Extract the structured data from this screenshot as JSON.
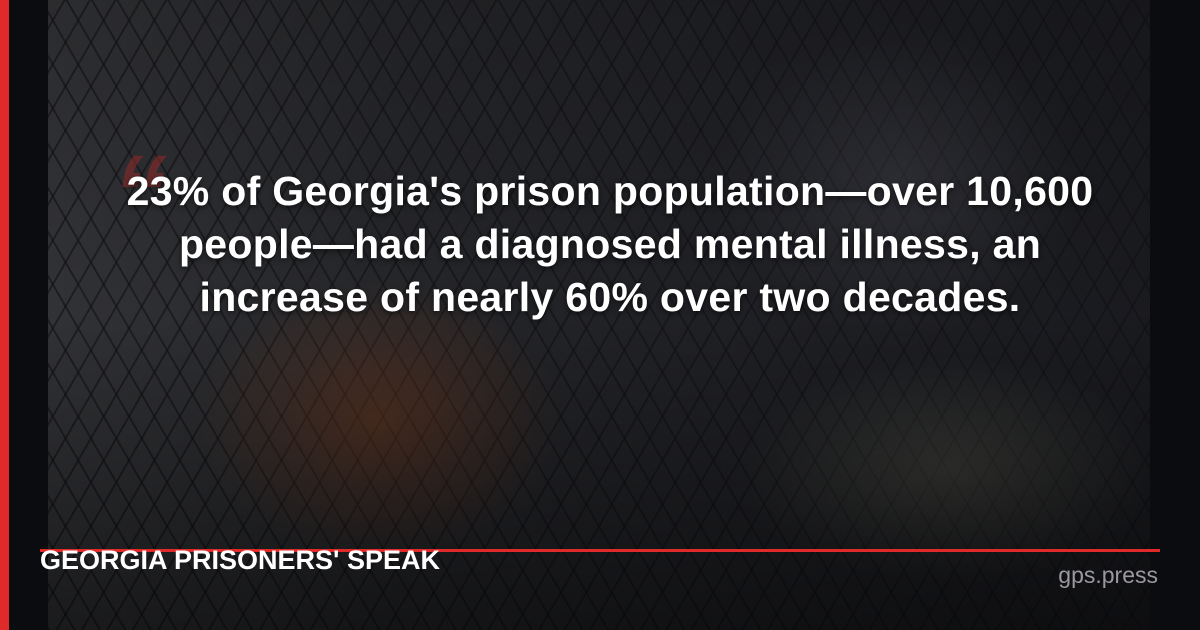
{
  "colors": {
    "accent": "#e02a2a",
    "text": "#ffffff",
    "muted": "#9a9a9e"
  },
  "quote_icon": "quotation-mark-icon",
  "quote": "23% of Georgia's prison population—over 10,600 people—had a diagnosed mental illness, an increase of nearly 60% over two decades.",
  "brand": "GEORGIA PRISONERS' SPEAK",
  "site": "gps.press"
}
